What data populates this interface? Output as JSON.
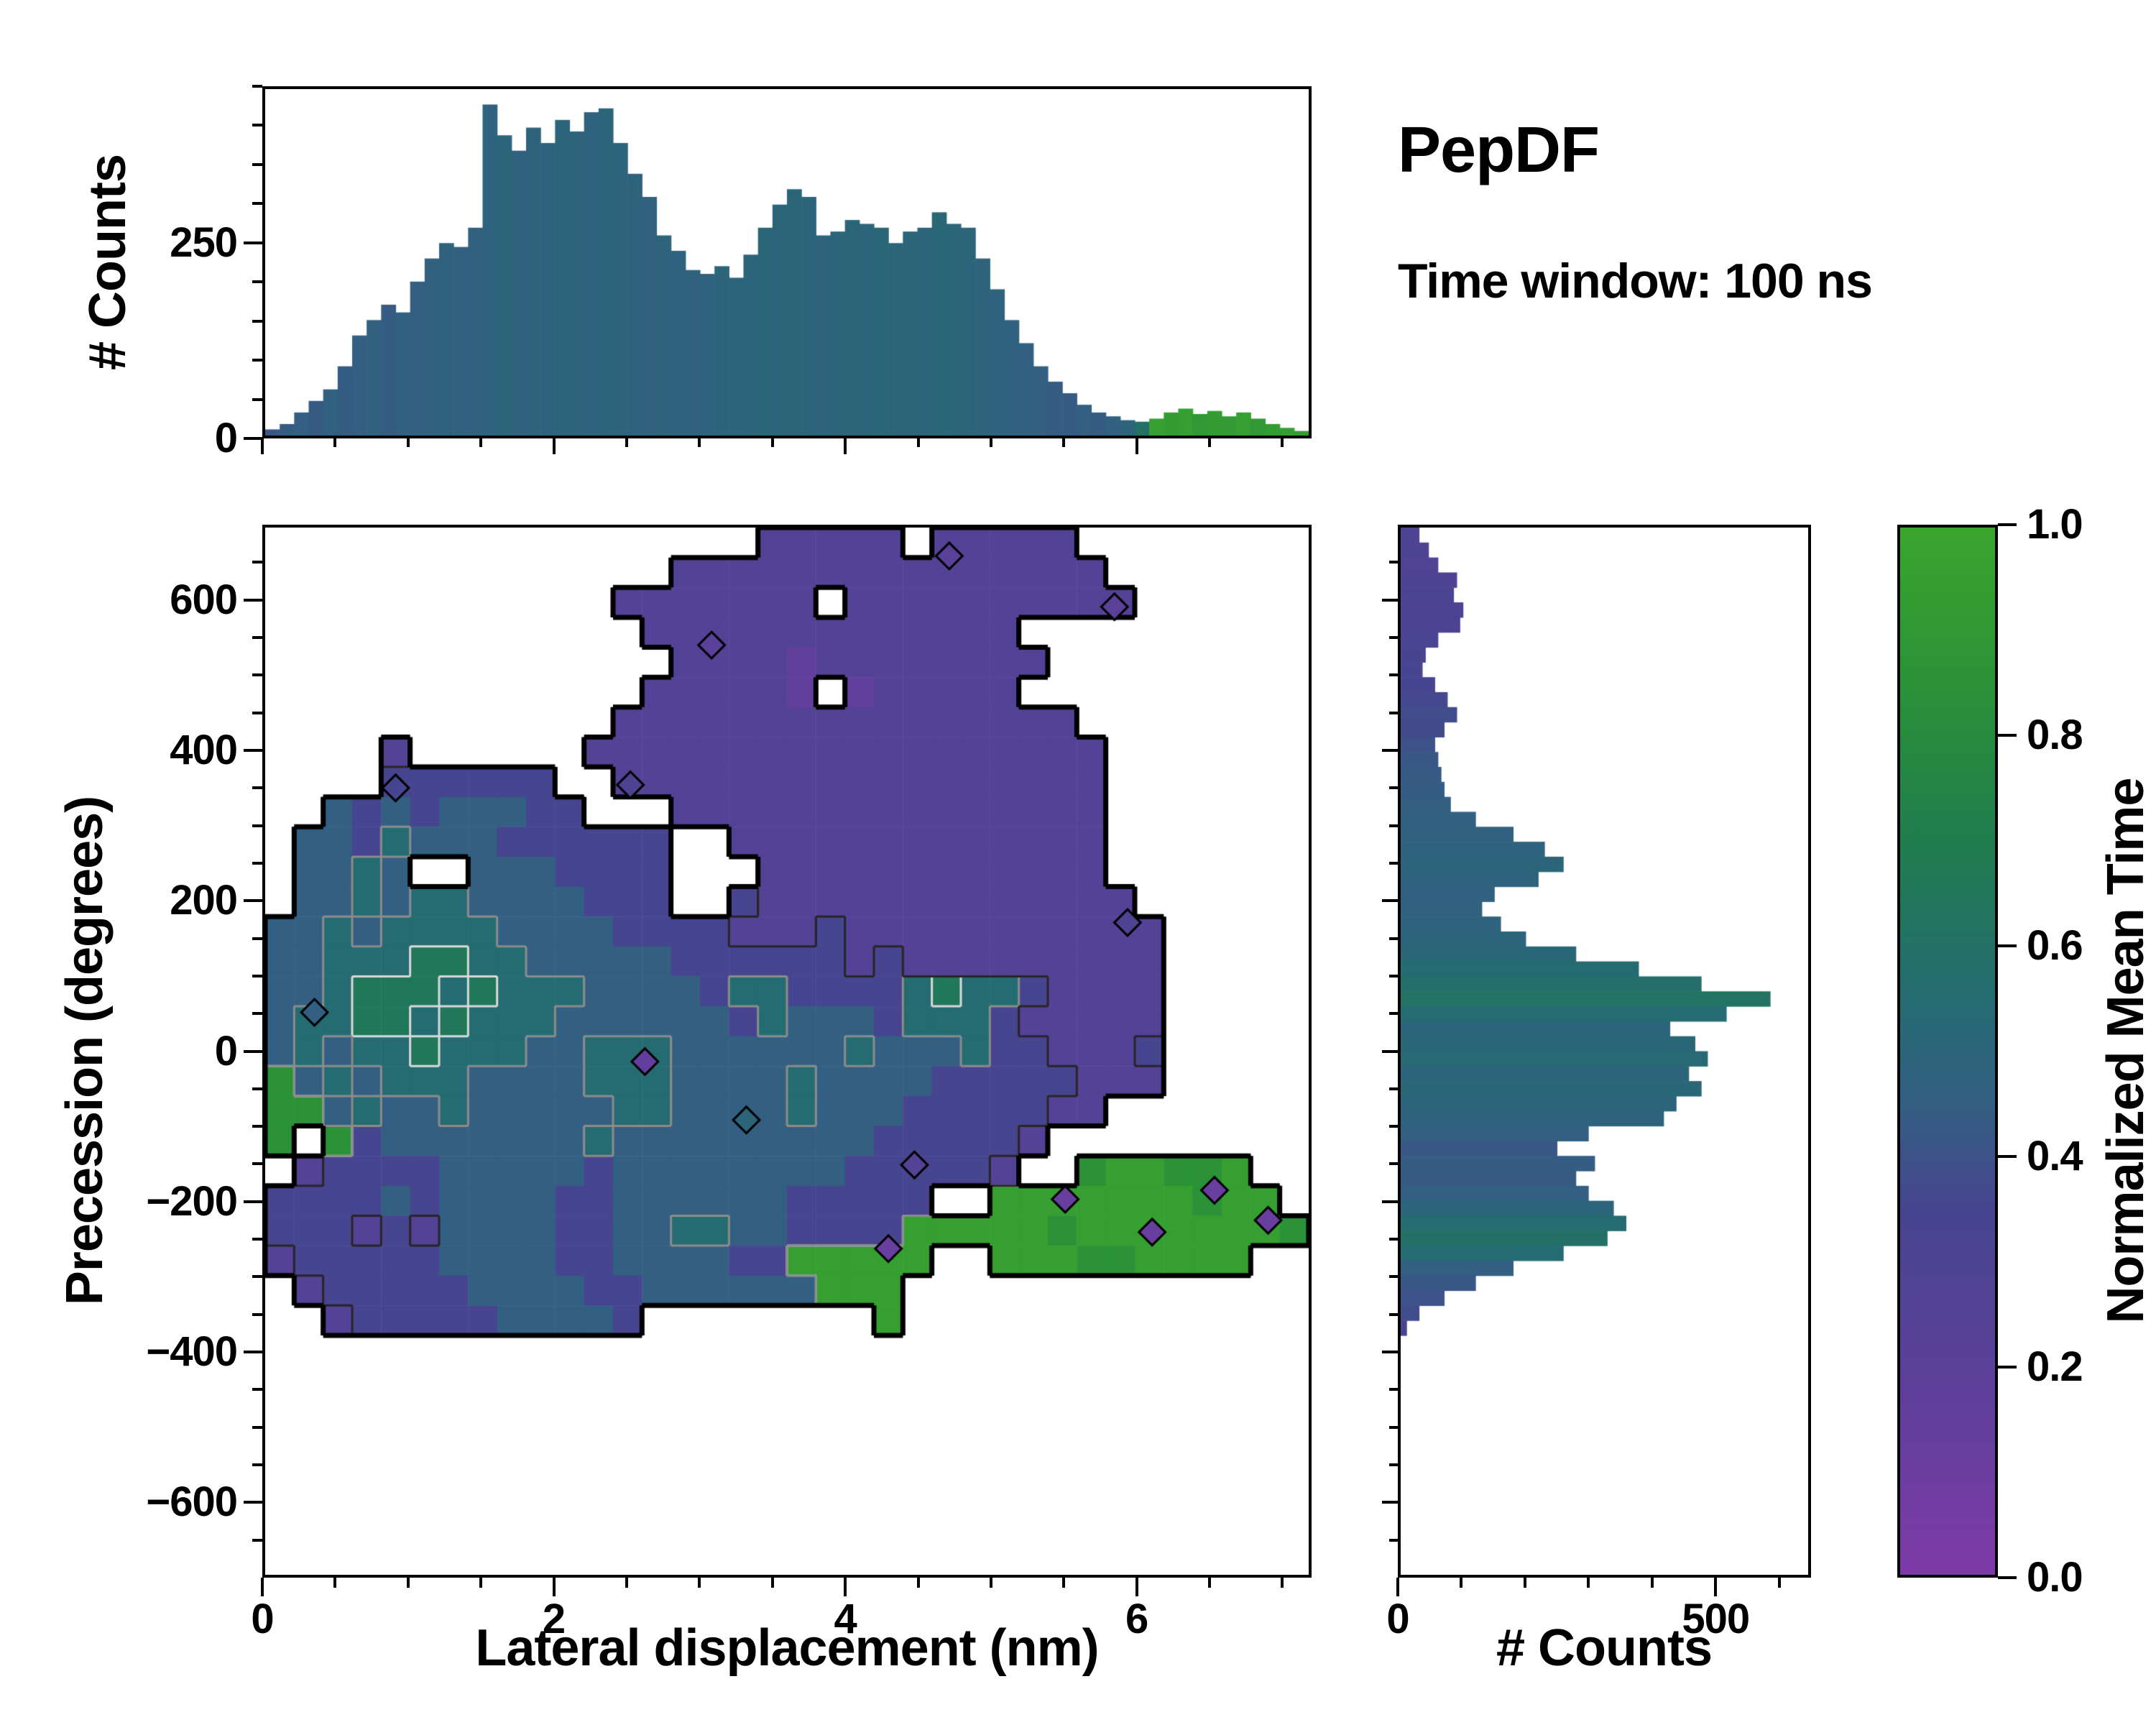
{
  "title": "PepDF",
  "subtitle": "Time window: 100 ns",
  "colormap": {
    "stops": [
      [
        0.0,
        "#7d3aa8"
      ],
      [
        0.2,
        "#5a4099"
      ],
      [
        0.35,
        "#47458f"
      ],
      [
        0.45,
        "#335f82"
      ],
      [
        0.55,
        "#256b72"
      ],
      [
        0.7,
        "#1f7d4e"
      ],
      [
        0.85,
        "#2b9238"
      ],
      [
        1.0,
        "#3aa52d"
      ]
    ]
  },
  "colorbar": {
    "label": "Normalized Mean Time",
    "ticks": [
      "1.0",
      "0.8",
      "0.6",
      "0.4",
      "0.2",
      "0.0"
    ],
    "tick_values": [
      1.0,
      0.8,
      0.6,
      0.4,
      0.2,
      0.0
    ]
  },
  "chart_data": [
    {
      "id": "top_hist",
      "type": "bar",
      "xlabel": "",
      "ylabel": "# Counts",
      "xlim": [
        0,
        7.2
      ],
      "ylim": [
        0,
        450
      ],
      "bin_width": 0.1,
      "x_start": 0,
      "yticks": [
        250,
        0
      ],
      "ytick_labels": [
        "250",
        "0"
      ],
      "values": [
        8,
        15,
        30,
        45,
        60,
        90,
        130,
        150,
        170,
        160,
        200,
        230,
        250,
        245,
        270,
        430,
        390,
        370,
        400,
        380,
        410,
        395,
        420,
        425,
        380,
        340,
        310,
        260,
        240,
        215,
        210,
        220,
        205,
        235,
        270,
        300,
        320,
        310,
        260,
        265,
        280,
        275,
        270,
        250,
        265,
        270,
        290,
        275,
        270,
        230,
        190,
        150,
        120,
        90,
        70,
        55,
        40,
        30,
        25,
        20,
        18,
        22,
        30,
        35,
        28,
        32,
        25,
        30,
        22,
        15,
        10,
        6
      ],
      "mean_time": [
        0.42,
        0.44,
        0.45,
        0.43,
        0.46,
        0.44,
        0.45,
        0.47,
        0.44,
        0.46,
        0.45,
        0.47,
        0.48,
        0.46,
        0.47,
        0.48,
        0.5,
        0.47,
        0.49,
        0.48,
        0.5,
        0.49,
        0.48,
        0.5,
        0.49,
        0.48,
        0.47,
        0.49,
        0.48,
        0.47,
        0.48,
        0.5,
        0.49,
        0.5,
        0.52,
        0.5,
        0.51,
        0.5,
        0.49,
        0.5,
        0.51,
        0.5,
        0.52,
        0.5,
        0.51,
        0.5,
        0.52,
        0.51,
        0.5,
        0.49,
        0.48,
        0.47,
        0.46,
        0.45,
        0.44,
        0.43,
        0.45,
        0.44,
        0.46,
        0.5,
        0.6,
        0.95,
        0.93,
        0.95,
        0.9,
        0.94,
        0.92,
        0.95,
        0.9,
        0.93,
        0.95,
        0.92
      ]
    },
    {
      "id": "main_heatmap",
      "type": "heatmap",
      "xlabel": "Lateral displacement (nm)",
      "ylabel": "Precession (degrees)",
      "xlim": [
        0,
        7.2
      ],
      "ylim": [
        -700,
        700
      ],
      "xticks": [
        0,
        2,
        4,
        6
      ],
      "xtick_labels": [
        "0",
        "2",
        "4",
        "6"
      ],
      "yticks": [
        600,
        400,
        200,
        0,
        -200,
        -400,
        -600
      ],
      "ytick_labels": [
        "600",
        "400",
        "200",
        "0",
        "−200",
        "−400",
        "−600"
      ],
      "cell_size": {
        "x": 0.2,
        "y": 40
      },
      "grid_note": "35 rows top-to-bottom from y=+700, 36 cols from x=0; '.'=empty, digit d => normalized mean time (d+0.5)/10",
      "grid": [
        ".................22222.22222........",
        "..............222222222222222.......",
        "............2222222.2222222222......",
        ".............2222222222222..........",
        "..............2222122222222.........",
        ".............222221.122222..........",
        "............2222222222222222........",
        "....2......222222222222222222.......",
        "....333333..22222222222222222.......",
        "..434344433...222222222222222.......",
        ".4435444333333..2222222222222.......",
        ".4454..4443333...222222222222.......",
        ".4454554444333..32222222222222......",
        "4454555544443333222322222222222.....",
        "4455566554444433333323222222222.....",
        "4456665655544443553333565532222.....",
        "4556656555444444354443555322222.....",
        "4545565554455544444454445332223.....",
        "8454555444455544445444433333222.....",
        "88454454444455444454443333322.......",
        "8.8344444445444444444333332.........",
        ".2333344444344444444333332..899889..",
        "33334344443344444433333..9999999899.",
        "333232444433445544333399999899999998",
        "23333344443344443399999..999889999..",
        ".233333444433444444999..............",
        "..23333344443........9..............",
        "....................................",
        "....................................",
        "....................................",
        "....................................",
        "....................................",
        "....................................",
        "....................................",
        "...................................."
      ],
      "contour_levels": [
        {
          "level": 0.6,
          "color": "#d9d9d9",
          "width": 3
        },
        {
          "level": 0.5,
          "color": "#8c8c8c",
          "width": 3
        },
        {
          "level": 0.3,
          "color": "#262626",
          "width": 3
        },
        {
          "level": 0.02,
          "color": "#000000",
          "width": 7
        }
      ],
      "markers": [
        {
          "x": 0.9,
          "y": 352,
          "v": 0.35
        },
        {
          "x": 2.52,
          "y": 356,
          "v": 0.3
        },
        {
          "x": 3.08,
          "y": 543,
          "v": 0.2
        },
        {
          "x": 4.72,
          "y": 662,
          "v": 0.2
        },
        {
          "x": 5.86,
          "y": 594,
          "v": 0.2
        },
        {
          "x": 0.34,
          "y": 52,
          "v": 0.45
        },
        {
          "x": 5.95,
          "y": 172,
          "v": 0.3
        },
        {
          "x": 2.62,
          "y": -14,
          "v": 0.15
        },
        {
          "x": 3.32,
          "y": -92,
          "v": 0.5
        },
        {
          "x": 4.48,
          "y": -152,
          "v": 0.25
        },
        {
          "x": 5.52,
          "y": -198,
          "v": 0.12
        },
        {
          "x": 6.12,
          "y": -242,
          "v": 0.12
        },
        {
          "x": 6.55,
          "y": -186,
          "v": 0.12
        },
        {
          "x": 6.92,
          "y": -226,
          "v": 0.12
        },
        {
          "x": 4.3,
          "y": -264,
          "v": 0.12
        }
      ]
    },
    {
      "id": "right_hist",
      "type": "bar-horizontal",
      "xlabel": "# Counts",
      "ylabel": "",
      "xlim": [
        0,
        650
      ],
      "ylim": [
        -700,
        700
      ],
      "bin_height": 20,
      "y_start_top": 700,
      "xticks": [
        0,
        500
      ],
      "xtick_labels": [
        "0",
        "500"
      ],
      "values": [
        30,
        45,
        60,
        90,
        85,
        100,
        95,
        60,
        40,
        35,
        55,
        75,
        90,
        70,
        55,
        60,
        65,
        70,
        80,
        120,
        180,
        230,
        260,
        220,
        150,
        130,
        160,
        200,
        280,
        380,
        480,
        590,
        520,
        430,
        470,
        490,
        460,
        480,
        440,
        420,
        300,
        250,
        310,
        280,
        300,
        340,
        360,
        330,
        260,
        180,
        120,
        70,
        30,
        10,
        0,
        0,
        0,
        0,
        0,
        0,
        0,
        0,
        0,
        0,
        0,
        0,
        0,
        0,
        0,
        0
      ],
      "mean_time": [
        0.3,
        0.3,
        0.28,
        0.3,
        0.32,
        0.3,
        0.3,
        0.32,
        0.33,
        0.35,
        0.35,
        0.36,
        0.38,
        0.37,
        0.4,
        0.42,
        0.43,
        0.44,
        0.45,
        0.46,
        0.47,
        0.48,
        0.5,
        0.48,
        0.46,
        0.47,
        0.48,
        0.5,
        0.52,
        0.55,
        0.58,
        0.62,
        0.55,
        0.5,
        0.52,
        0.53,
        0.5,
        0.52,
        0.5,
        0.48,
        0.45,
        0.42,
        0.44,
        0.43,
        0.45,
        0.5,
        0.55,
        0.6,
        0.55,
        0.45,
        0.42,
        0.4,
        0.38,
        0.35,
        0,
        0,
        0,
        0,
        0,
        0,
        0,
        0,
        0,
        0,
        0,
        0,
        0,
        0,
        0,
        0
      ]
    }
  ]
}
